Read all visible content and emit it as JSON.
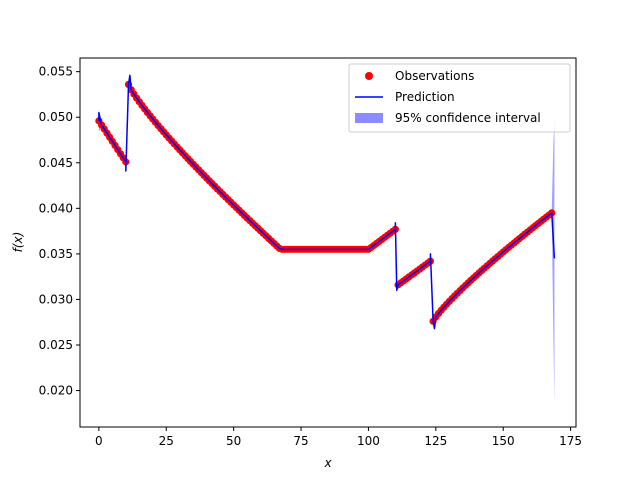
{
  "chart_data": {
    "type": "scatter",
    "title": "",
    "xlabel": "x",
    "ylabel": "f(x)",
    "xlim": [
      -7,
      177
    ],
    "ylim": [
      0.016,
      0.0565
    ],
    "grid": false,
    "legend_position": "top-right",
    "x_ticks": [
      0,
      25,
      50,
      75,
      100,
      125,
      150,
      175
    ],
    "x_tick_labels": [
      "0",
      "25",
      "50",
      "75",
      "100",
      "125",
      "150",
      "175"
    ],
    "y_ticks": [
      0.02,
      0.025,
      0.03,
      0.035,
      0.04,
      0.045,
      0.05,
      0.055
    ],
    "y_tick_labels": [
      "0.020",
      "0.025",
      "0.030",
      "0.035",
      "0.040",
      "0.045",
      "0.050",
      "0.055"
    ],
    "legend": {
      "observations": "Observations",
      "prediction": "Prediction",
      "interval": "95% confidence interval"
    },
    "colors": {
      "observations": "#ff0000",
      "prediction": "#0000ff",
      "interval": "#8080ff"
    },
    "observation_segments": [
      {
        "x_start": 0,
        "x_end": 10,
        "y_start": 0.0496,
        "y_end": 0.0451
      },
      {
        "x_start": 11,
        "x_end": 67,
        "y_start": 0.0536,
        "y_end": 0.0356
      },
      {
        "x_start": 68,
        "x_end": 100,
        "y_start": 0.0355,
        "y_end": 0.0355
      },
      {
        "x_start": 101,
        "x_end": 110,
        "y_start": 0.0357,
        "y_end": 0.0377
      },
      {
        "x_start": 111,
        "x_end": 123,
        "y_start": 0.0316,
        "y_end": 0.0342
      },
      {
        "x_start": 124,
        "x_end": 168,
        "y_start": 0.0276,
        "y_end": 0.0395
      }
    ],
    "prediction_spikes": [
      {
        "x": 0,
        "y": 0.0505
      },
      {
        "x": 10,
        "y": 0.0441
      },
      {
        "x": 11.5,
        "y": 0.0546
      },
      {
        "x": 110,
        "y": 0.0384
      },
      {
        "x": 110.5,
        "y": 0.031
      },
      {
        "x": 123,
        "y": 0.035
      },
      {
        "x": 124.5,
        "y": 0.0268
      },
      {
        "x": 169,
        "y": 0.0345
      }
    ]
  }
}
